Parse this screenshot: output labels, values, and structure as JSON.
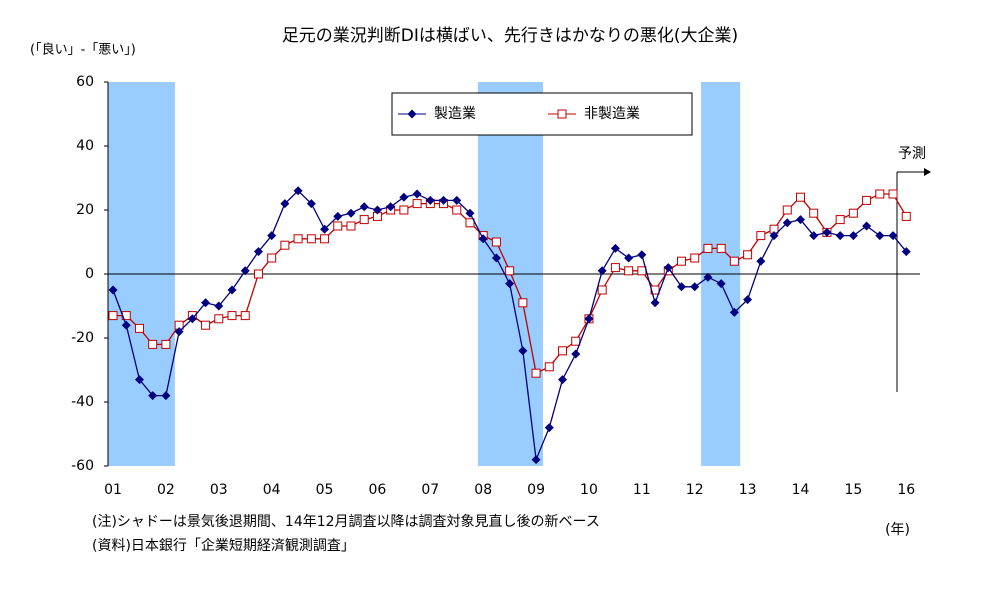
{
  "chart_data": {
    "type": "line",
    "title": "足元の業況判断DIは横ばい、先行きはかなりの悪化(大企業)",
    "ylabel": "(「良い」-「悪い」)",
    "xunit": "(年)",
    "notes": [
      "(注)シャドーは景気後退期間、14年12月調査以降は調査対象見直し後の新ベース",
      "(資料)日本銀行「企業短期経済観測調査」"
    ],
    "annotation": "予測",
    "xlim": [
      2000.905,
      2016.26
    ],
    "xticks": [
      {
        "value": 2001,
        "label": "01"
      },
      {
        "value": 2002,
        "label": "02"
      },
      {
        "value": 2003,
        "label": "03"
      },
      {
        "value": 2004,
        "label": "04"
      },
      {
        "value": 2005,
        "label": "05"
      },
      {
        "value": 2006,
        "label": "06"
      },
      {
        "value": 2007,
        "label": "07"
      },
      {
        "value": 2008,
        "label": "08"
      },
      {
        "value": 2009,
        "label": "09"
      },
      {
        "value": 2010,
        "label": "10"
      },
      {
        "value": 2011,
        "label": "11"
      },
      {
        "value": 2012,
        "label": "12"
      },
      {
        "value": 2013,
        "label": "13"
      },
      {
        "value": 2014,
        "label": "14"
      },
      {
        "value": 2015,
        "label": "15"
      },
      {
        "value": 2016,
        "label": "16"
      }
    ],
    "ylim": [
      -60,
      60
    ],
    "yticks": [
      -60,
      -40,
      -20,
      0,
      20,
      40,
      60
    ],
    "shade_color": "#99ccff",
    "shaded_periods": [
      [
        2000.905,
        2002.17
      ],
      [
        2007.9,
        2009.13
      ],
      [
        2012.12,
        2012.86
      ]
    ],
    "x": [
      2001,
      2001.25,
      2001.5,
      2001.75,
      2002,
      2002.25,
      2002.5,
      2002.75,
      2003,
      2003.25,
      2003.5,
      2003.75,
      2004,
      2004.25,
      2004.5,
      2004.75,
      2005,
      2005.25,
      2005.5,
      2005.75,
      2006,
      2006.25,
      2006.5,
      2006.75,
      2007,
      2007.25,
      2007.5,
      2007.75,
      2008,
      2008.25,
      2008.5,
      2008.75,
      2009,
      2009.25,
      2009.5,
      2009.75,
      2010,
      2010.25,
      2010.5,
      2010.75,
      2011,
      2011.25,
      2011.5,
      2011.75,
      2012,
      2012.25,
      2012.5,
      2012.75,
      2013,
      2013.25,
      2013.5,
      2013.75,
      2014,
      2014.25,
      2014.5,
      2014.75,
      2015,
      2015.25,
      2015.5,
      2015.75,
      2016
    ],
    "series": [
      {
        "name": "製造業",
        "color": "#000080",
        "marker": "diamond",
        "values": [
          -5,
          -16,
          -33,
          -38,
          -38,
          -18,
          -14,
          -9,
          -10,
          -5,
          1,
          7,
          12,
          22,
          26,
          22,
          14,
          18,
          19,
          21,
          20,
          21,
          24,
          25,
          23,
          23,
          23,
          19,
          11,
          5,
          -3,
          -24,
          -58,
          -48,
          -33,
          -25,
          -14,
          1,
          8,
          5,
          6,
          -9,
          2,
          -4,
          -4,
          -1,
          -3,
          -12,
          -8,
          4,
          12,
          16,
          17,
          12,
          13,
          12,
          12,
          15,
          12,
          12,
          7
        ]
      },
      {
        "name": "非製造業",
        "color": "#c00000",
        "marker": "square",
        "values": [
          -13,
          -13,
          -17,
          -22,
          -22,
          -16,
          -13,
          -16,
          -14,
          -13,
          -13,
          0,
          5,
          9,
          11,
          11,
          11,
          15,
          15,
          17,
          18,
          20,
          20,
          22,
          22,
          22,
          20,
          16,
          12,
          10,
          1,
          -9,
          -31,
          -29,
          -24,
          -21,
          -14,
          -5,
          2,
          1,
          1,
          -5,
          1,
          4,
          5,
          8,
          8,
          4,
          6,
          12,
          14,
          20,
          24,
          19,
          13,
          17,
          19,
          23,
          25,
          25,
          18
        ]
      }
    ]
  }
}
